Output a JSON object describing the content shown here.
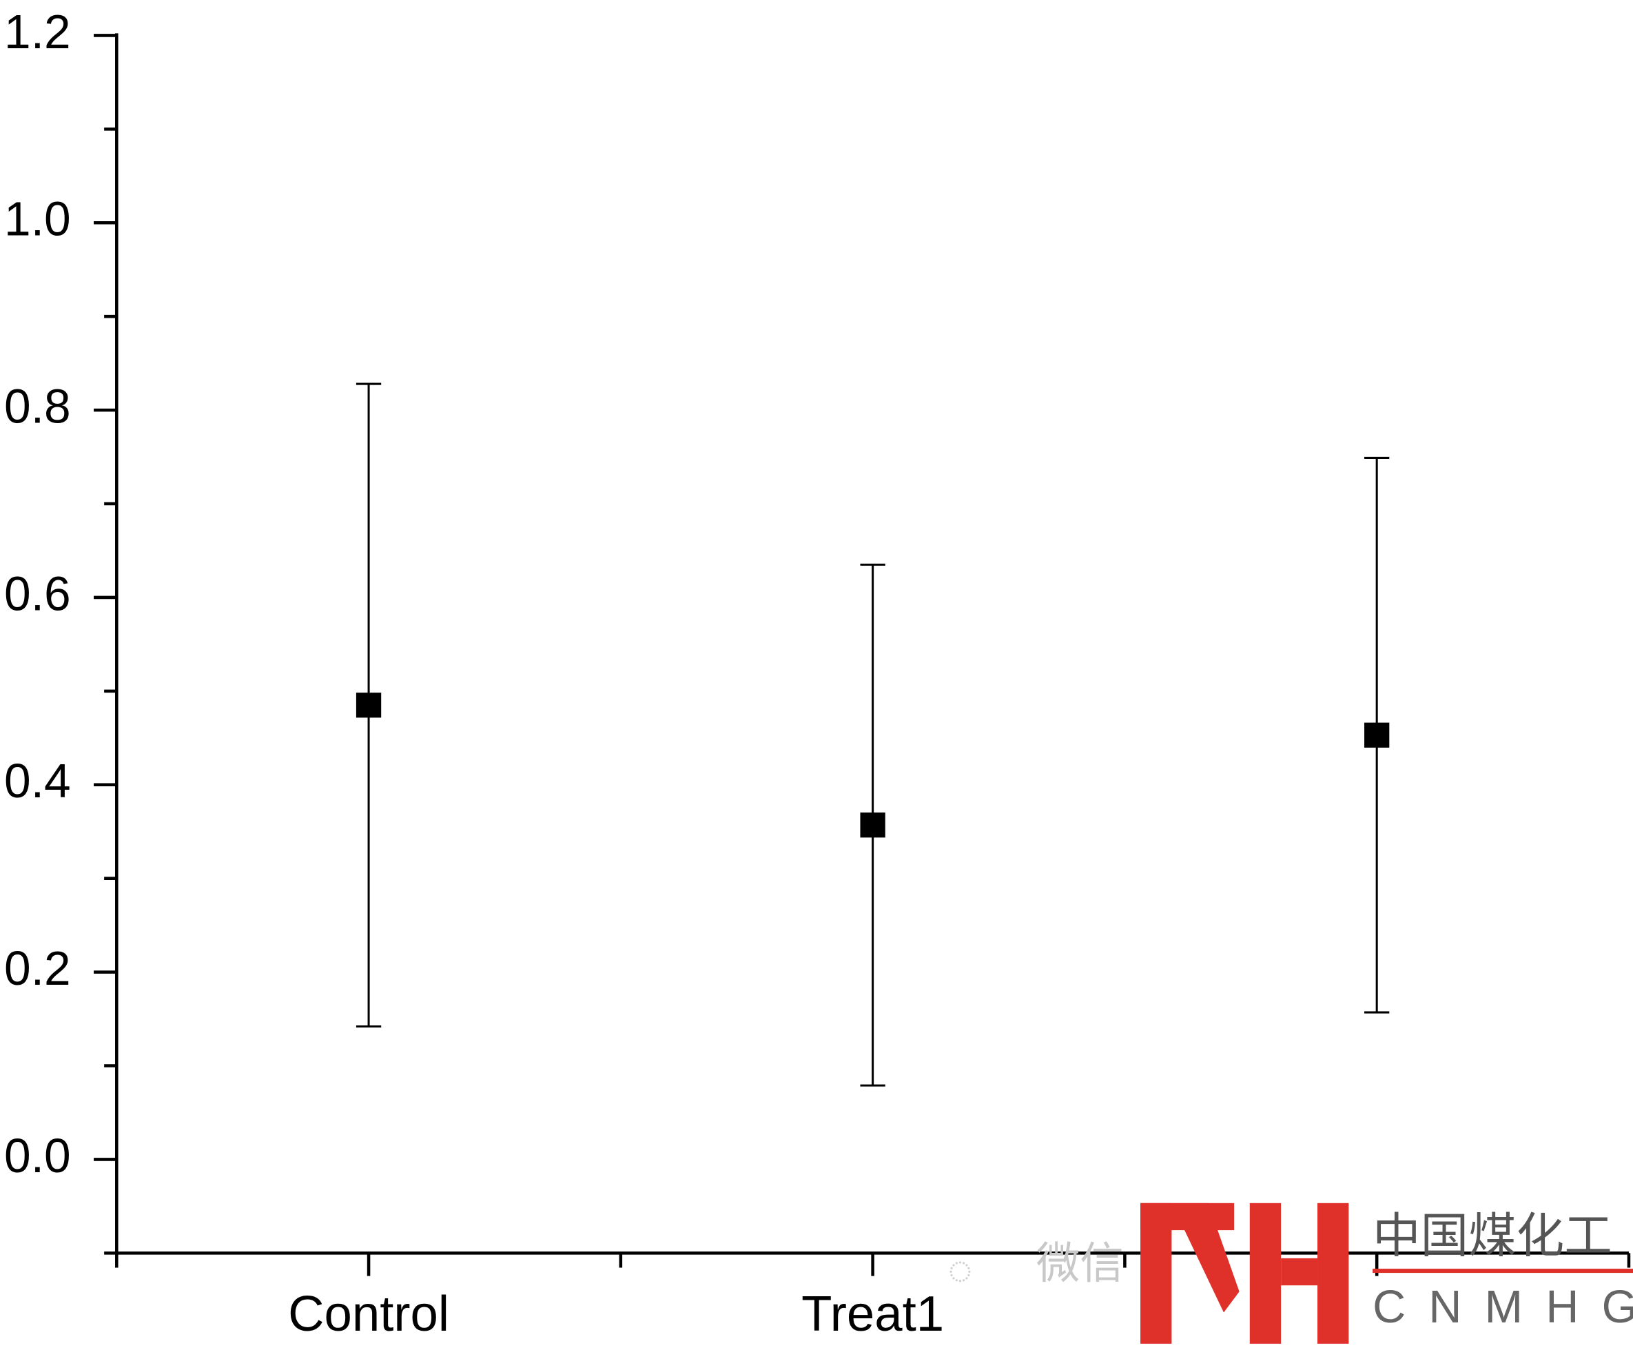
{
  "chart_data": {
    "type": "errorbar",
    "categories": [
      "Control",
      "Treat1",
      null
    ],
    "values": [
      0.485,
      0.357,
      0.453
    ],
    "errors": [
      0.343,
      0.278,
      0.296
    ],
    "color": "#000000",
    "ylim": [
      -0.1,
      1.2
    ],
    "yticks": [
      {
        "value": 0,
        "label": "0.0"
      },
      0.2,
      0.4,
      0.6,
      0.8,
      {
        "value": 1,
        "label": "1.0"
      },
      1.2
    ]
  },
  "watermark": {
    "wechat": "微信",
    "logo_cn": "中国煤化工",
    "logo_en": "CNMHG"
  }
}
